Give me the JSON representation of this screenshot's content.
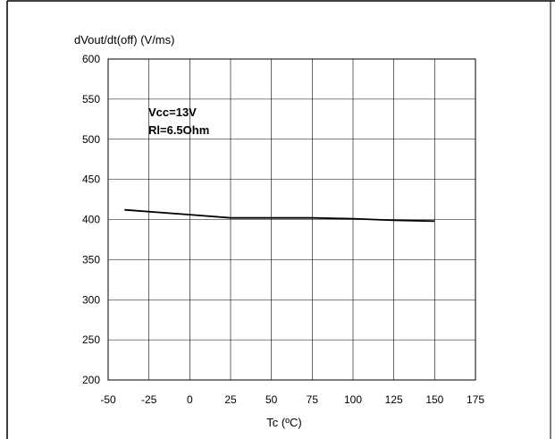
{
  "chart_data": {
    "type": "line",
    "title": "dVout/dt(off) (V/ms)",
    "xlabel": "Tc (ºC)",
    "ylabel": "dVout/dt(off) (V/ms)",
    "xlim": [
      -50,
      175
    ],
    "ylim": [
      200,
      600
    ],
    "x_ticks": [
      -50,
      -25,
      0,
      25,
      50,
      75,
      100,
      125,
      150,
      175
    ],
    "y_ticks": [
      200,
      250,
      300,
      350,
      400,
      450,
      500,
      550,
      600
    ],
    "grid": true,
    "annotations": [
      "Vcc=13V",
      "Rl=6.5Ohm"
    ],
    "series": [
      {
        "x": [
          -40,
          0,
          25,
          75,
          100,
          125,
          150
        ],
        "y": [
          412,
          406,
          402,
          402,
          401,
          399,
          398
        ]
      }
    ]
  },
  "colors": {
    "line": "#000000",
    "grid": "#000000",
    "background": "#ffffff"
  }
}
